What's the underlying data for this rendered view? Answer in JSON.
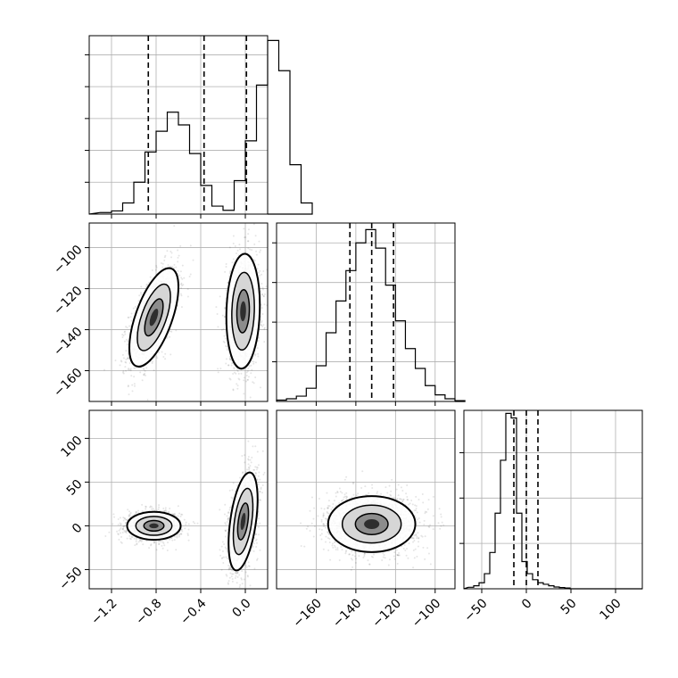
{
  "chart_data": {
    "type": "corner",
    "grid": true,
    "panels": {
      "hist_p1": {
        "kind": "histogram",
        "xlim": [
          -1.4,
          0.2
        ],
        "bins": {
          "start": -1.3,
          "width": 0.1
        },
        "counts": [
          0.5,
          1.0,
          3.5,
          10,
          19.5,
          26,
          32,
          28,
          19,
          9,
          2.5,
          1.2,
          10.5,
          23,
          40.5,
          54.5,
          45,
          15.5,
          3.5
        ],
        "ymax": 56,
        "quantiles": [
          -0.87,
          -0.37,
          0.01
        ]
      },
      "scatter_p1_p2": {
        "kind": "2d-density",
        "xlim": [
          -1.4,
          0.2
        ],
        "ylim": [
          -175,
          -88
        ],
        "modes": [
          {
            "center": [
              -0.82,
              -134
            ],
            "sx": 0.11,
            "sy": 12,
            "corr": 0.62
          },
          {
            "center": [
              -0.02,
              -131
            ],
            "sx": 0.075,
            "sy": 14,
            "corr": 0.1
          }
        ],
        "x_ticks": [
          "−1.2",
          "−0.8",
          "−0.4",
          "0.0"
        ],
        "y_ticks": [
          "−100",
          "−120",
          "−140",
          "−160"
        ]
      },
      "hist_p2": {
        "kind": "histogram",
        "xlim": [
          -180,
          -90
        ],
        "bins": {
          "start": -180,
          "width": 5
        },
        "counts": [
          1,
          2,
          4,
          10,
          27,
          52,
          76,
          99,
          120,
          130,
          116,
          88,
          61,
          40,
          25,
          12,
          5,
          2,
          0.6
        ],
        "ymax": 135,
        "quantiles": [
          -143,
          -132,
          -121
        ]
      },
      "scatter_p1_p3": {
        "kind": "2d-density",
        "xlim": [
          -1.4,
          0.2
        ],
        "ylim": [
          -72,
          132
        ],
        "modes": [
          {
            "center": [
              -0.82,
              0
            ],
            "sx": 0.12,
            "sy": 8,
            "corr": 0.0
          },
          {
            "center": [
              -0.02,
              5
            ],
            "sx": 0.065,
            "sy": 28,
            "corr": 0.45
          }
        ],
        "x_ticks": [
          "−1.2",
          "−0.8",
          "−0.4",
          "0.0"
        ],
        "y_ticks": [
          "100",
          "50",
          "0",
          "−50"
        ]
      },
      "scatter_p2_p3": {
        "kind": "2d-density",
        "xlim": [
          -180,
          -90
        ],
        "ylim": [
          -72,
          132
        ],
        "modes": [
          {
            "center": [
              -132,
              2
            ],
            "sx": 11,
            "sy": 16,
            "corr": 0.0
          }
        ],
        "x_ticks": [
          "−160",
          "−140",
          "−120",
          "−100"
        ]
      },
      "hist_p3": {
        "kind": "histogram",
        "xlim": [
          -70,
          130
        ],
        "bins": {
          "start": -65,
          "width": 6
        },
        "counts": [
          1,
          2,
          4,
          10,
          24,
          50,
          85,
          116,
          113,
          50,
          18,
          10,
          6,
          4,
          3,
          2,
          1.2,
          0.8,
          0.5
        ],
        "ymax": 118,
        "quantiles": [
          -14,
          0,
          13
        ],
        "x_ticks": [
          "−50",
          "0",
          "50",
          "100"
        ]
      }
    }
  }
}
